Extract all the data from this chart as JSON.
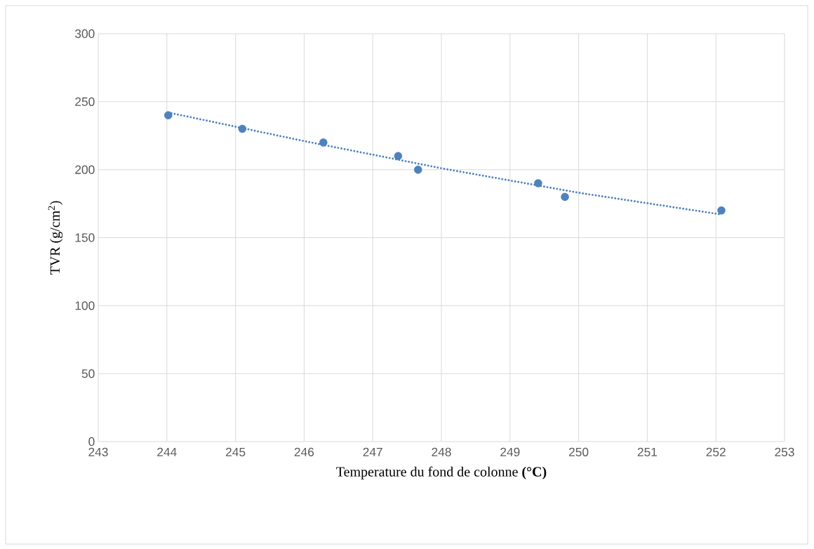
{
  "chart_data": {
    "type": "scatter",
    "xlabel": "Temperature du fond de colonne **(°C)**",
    "ylabel": "TVR (g/cm$^{2}$)",
    "xlim": [
      243,
      253
    ],
    "ylim": [
      0,
      300
    ],
    "xticks": [
      243,
      244,
      245,
      246,
      247,
      248,
      249,
      250,
      251,
      252,
      253
    ],
    "yticks": [
      0,
      50,
      100,
      150,
      200,
      250,
      300
    ],
    "grid": true,
    "series": [
      {
        "color": "#4f81bd",
        "marker": "circle",
        "x": [
          244.02,
          245.1,
          246.28,
          247.37,
          247.66,
          249.41,
          249.8,
          252.08
        ],
        "values": [
          240,
          230,
          220,
          210,
          200,
          190,
          180,
          170
        ]
      },
      {
        "type": "line",
        "color": "#4f81bd",
        "line_style": "dotted",
        "marker": "none",
        "x": [
          244.02,
          246,
          248,
          250,
          252.08
        ],
        "values": [
          242,
          221,
          201,
          183,
          167
        ]
      }
    ]
  }
}
